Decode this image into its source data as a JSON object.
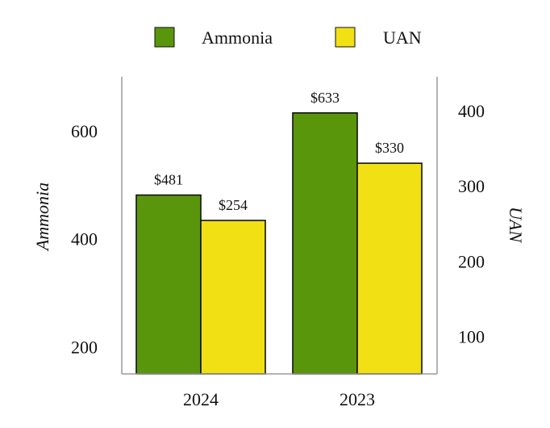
{
  "chart_data": {
    "type": "bar",
    "categories": [
      "2024",
      "2023"
    ],
    "series": [
      {
        "name": "Ammonia",
        "axis": "left",
        "values": [
          481,
          633
        ],
        "labels": [
          "$481",
          "$633"
        ],
        "color": "#5a960c"
      },
      {
        "name": "UAN",
        "axis": "right",
        "values": [
          254,
          330
        ],
        "labels": [
          "$254",
          "$330"
        ],
        "color": "#f0e014"
      }
    ],
    "y_left": {
      "label": "Ammonia",
      "ticks": [
        "200",
        "400",
        "600"
      ],
      "tick_values": [
        200,
        400,
        600
      ],
      "range": [
        150,
        700
      ]
    },
    "y_right": {
      "label": "UAN",
      "ticks": [
        "100",
        "200",
        "300",
        "400"
      ],
      "tick_values": [
        100,
        200,
        300,
        400
      ],
      "range": [
        50,
        445
      ]
    },
    "legend_position": "top",
    "grid": false
  }
}
